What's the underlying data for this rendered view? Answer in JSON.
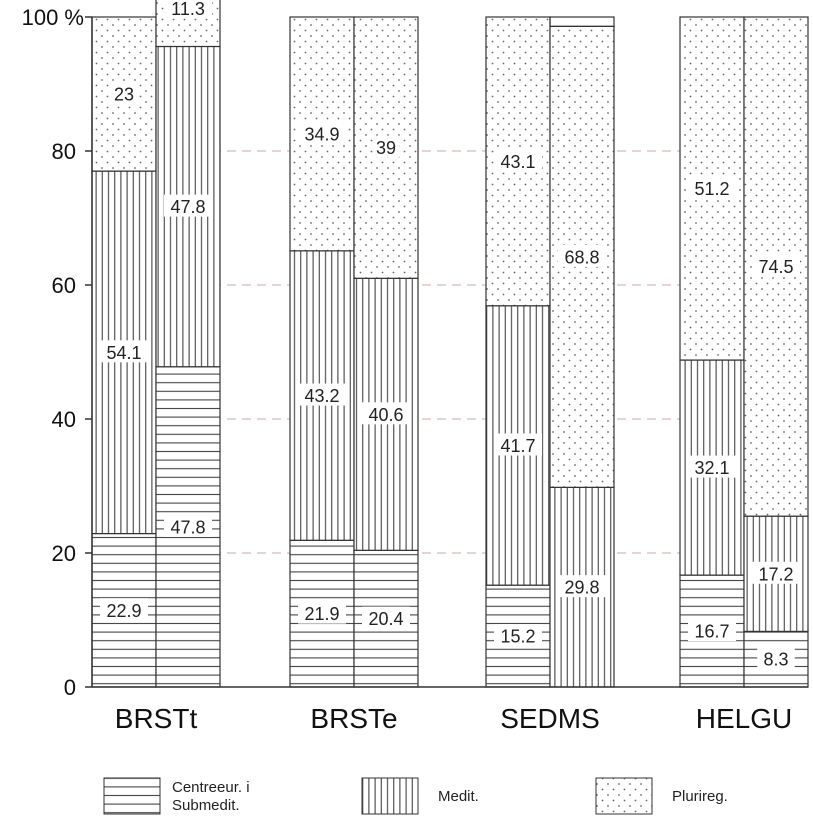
{
  "chart_data": {
    "type": "bar",
    "stacked": true,
    "percent_axis_label": "100 %",
    "y_ticks": [
      0,
      20,
      40,
      60,
      80
    ],
    "ylim": [
      0,
      100
    ],
    "grid": "dashed horizontal at 20, 40, 60, 80",
    "legend_position": "bottom",
    "groups": [
      {
        "category": "BRSTt",
        "bars": [
          {
            "values": [
              22.9,
              54.1,
              23
            ],
            "labels": [
              "22.9",
              "54.1",
              "23"
            ]
          },
          {
            "values": [
              47.8,
              47.8,
              11.3
            ],
            "labels": [
              "47.8",
              "47.8",
              "11.3"
            ]
          }
        ]
      },
      {
        "category": "BRSTe",
        "bars": [
          {
            "values": [
              21.9,
              43.2,
              34.9
            ],
            "labels": [
              "21.9",
              "43.2",
              "34.9"
            ]
          },
          {
            "values": [
              20.4,
              40.6,
              39
            ],
            "labels": [
              "20.4",
              "40.6",
              "39"
            ]
          }
        ]
      },
      {
        "category": "SEDMS",
        "bars": [
          {
            "values": [
              15.2,
              41.7,
              43.1
            ],
            "labels": [
              "15.2",
              "41.7",
              "43.1"
            ]
          },
          {
            "values": [
              0,
              29.8,
              68.8
            ],
            "labels": [
              "",
              "29.8",
              "68.8"
            ]
          }
        ]
      },
      {
        "category": "HELGU",
        "bars": [
          {
            "values": [
              16.7,
              32.1,
              51.2
            ],
            "labels": [
              "16.7",
              "32.1",
              "51.2"
            ]
          },
          {
            "values": [
              8.3,
              17.2,
              74.5
            ],
            "labels": [
              "8.3",
              "17.2",
              "74.5"
            ]
          }
        ]
      }
    ],
    "series": [
      {
        "name": "Centreeur. i Submedit.",
        "legend_lines": [
          "Centreeur. i",
          "Submedit."
        ],
        "pattern": "horizontal-lines"
      },
      {
        "name": "Medit.",
        "legend_lines": [
          "Medit."
        ],
        "pattern": "vertical-lines"
      },
      {
        "name": "Plurireg.",
        "legend_lines": [
          "Plurireg."
        ],
        "pattern": "dots"
      }
    ],
    "colors": {
      "ink": "#333333",
      "grid": "#c9a8a8",
      "background": "#ffffff"
    }
  }
}
